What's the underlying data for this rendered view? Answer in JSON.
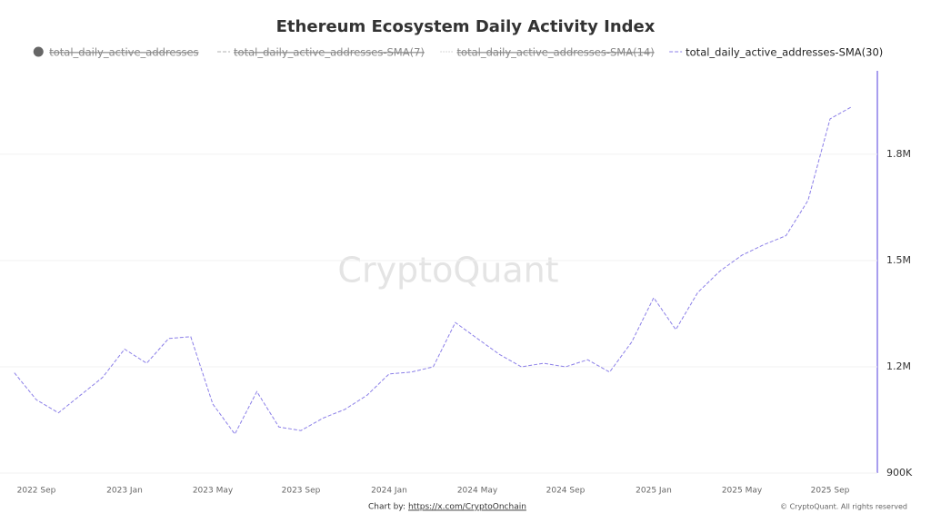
{
  "chart_data": {
    "type": "line",
    "title": "Ethereum Ecosystem Daily Activity Index",
    "watermark": "CryptoQuant",
    "source_prefix": "Chart by:",
    "source_link": "https://x.com/CryptoOnchain",
    "copyright": "© CryptoQuant. All rights reserved",
    "x": [
      "2022-08",
      "2022-09",
      "2022-10",
      "2022-11",
      "2022-12",
      "2023-01",
      "2023-02",
      "2023-03",
      "2023-04",
      "2023-05",
      "2023-06",
      "2023-07",
      "2023-08",
      "2023-09",
      "2023-10",
      "2023-11",
      "2023-12",
      "2024-01",
      "2024-02",
      "2024-03",
      "2024-04",
      "2024-05",
      "2024-06",
      "2024-07",
      "2024-08",
      "2024-09",
      "2024-10",
      "2024-11",
      "2024-12",
      "2025-01",
      "2025-02",
      "2025-03",
      "2025-04",
      "2025-05",
      "2025-06",
      "2025-07",
      "2025-08",
      "2025-09",
      "2025-10"
    ],
    "xticks": [
      {
        "value": "2022-09",
        "label": "2022 Sep"
      },
      {
        "value": "2023-01",
        "label": "2023 Jan"
      },
      {
        "value": "2023-05",
        "label": "2023 May"
      },
      {
        "value": "2023-09",
        "label": "2023 Sep"
      },
      {
        "value": "2024-01",
        "label": "2024 Jan"
      },
      {
        "value": "2024-05",
        "label": "2024 May"
      },
      {
        "value": "2024-09",
        "label": "2024 Sep"
      },
      {
        "value": "2025-01",
        "label": "2025 Jan"
      },
      {
        "value": "2025-05",
        "label": "2025 May"
      },
      {
        "value": "2025-09",
        "label": "2025 Sep"
      }
    ],
    "ylim": [
      900000,
      2010000
    ],
    "yticks": [
      {
        "value": 900000,
        "label": "900K"
      },
      {
        "value": 1200000,
        "label": "1.2M"
      },
      {
        "value": 1500000,
        "label": "1.5M"
      },
      {
        "value": 1800000,
        "label": "1.8M"
      }
    ],
    "y_axis_side": "right",
    "grid": true,
    "series": [
      {
        "name": "total_daily_active_addresses",
        "color": "#666666",
        "hidden": true
      },
      {
        "name": "total_daily_active_addresses-SMA(7)",
        "color": "#b0b0b0",
        "hidden": true
      },
      {
        "name": "total_daily_active_addresses-SMA(14)",
        "color": "#b0b0b0",
        "hidden": true
      },
      {
        "name": "total_daily_active_addresses-SMA(30)",
        "color": "#8b7fe8",
        "values": [
          1183000,
          1107000,
          1070000,
          1120000,
          1170000,
          1250000,
          1210000,
          1280000,
          1285000,
          1095000,
          1010000,
          1130000,
          1030000,
          1020000,
          1055000,
          1080000,
          1120000,
          1180000,
          1185000,
          1200000,
          1325000,
          1280000,
          1235000,
          1200000,
          1210000,
          1200000,
          1220000,
          1185000,
          1270000,
          1395000,
          1305000,
          1410000,
          1470000,
          1515000,
          1545000,
          1570000,
          1670000,
          1900000,
          1935000
        ]
      }
    ]
  }
}
